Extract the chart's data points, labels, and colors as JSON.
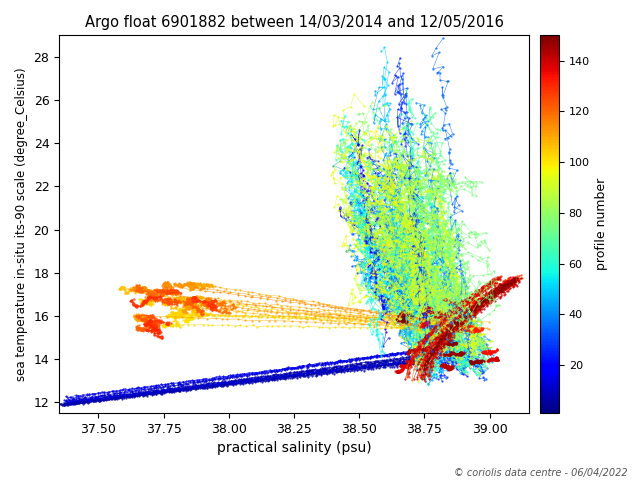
{
  "title": "Argo float 6901882 between 14/03/2014 and 12/05/2016",
  "xlabel": "practical salinity (psu)",
  "ylabel": "sea temperature in-situ its-90 scale (degree_Celsius)",
  "cbar_label": "profile number",
  "copyright": "© coriolis data centre - 06/04/2022",
  "xlim": [
    37.35,
    39.15
  ],
  "ylim": [
    11.5,
    29.0
  ],
  "xticks": [
    37.5,
    37.75,
    38.0,
    38.25,
    38.5,
    38.75,
    39.0
  ],
  "yticks": [
    12,
    14,
    16,
    18,
    20,
    22,
    24,
    26,
    28
  ],
  "cmap": "jet",
  "vmin": 1,
  "vmax": 150,
  "cbar_ticks": [
    20,
    40,
    60,
    80,
    100,
    120,
    140
  ],
  "seed": 1234
}
